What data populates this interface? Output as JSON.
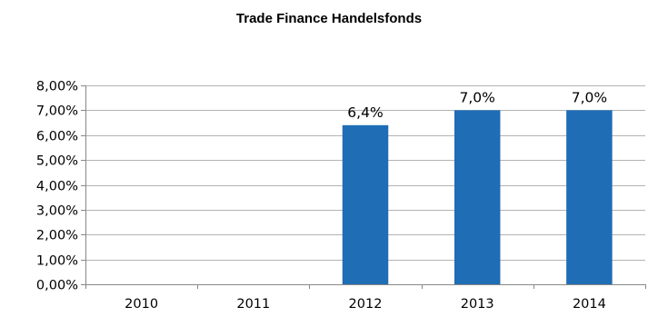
{
  "chart_data": {
    "type": "bar",
    "title": "Trade Finance Handelsfonds",
    "xlabel": "",
    "ylabel": "",
    "categories": [
      "2010",
      "2011",
      "2012",
      "2013",
      "2014"
    ],
    "values": [
      null,
      null,
      6.4,
      7.0,
      7.0
    ],
    "data_labels": [
      "",
      "",
      "6,4%",
      "7,0%",
      "7,0%"
    ],
    "ylim": [
      0,
      8
    ],
    "y_ticks": [
      0,
      1,
      2,
      3,
      4,
      5,
      6,
      7,
      8
    ],
    "y_tick_labels": [
      "0,00%",
      "1,00%",
      "2,00%",
      "3,00%",
      "4,00%",
      "5,00%",
      "6,00%",
      "7,00%",
      "8,00%"
    ],
    "grid": true,
    "legend": "none",
    "colors": {
      "bar": "#1f6db5",
      "grid": "#b3b3b3",
      "axis": "#888888"
    }
  }
}
